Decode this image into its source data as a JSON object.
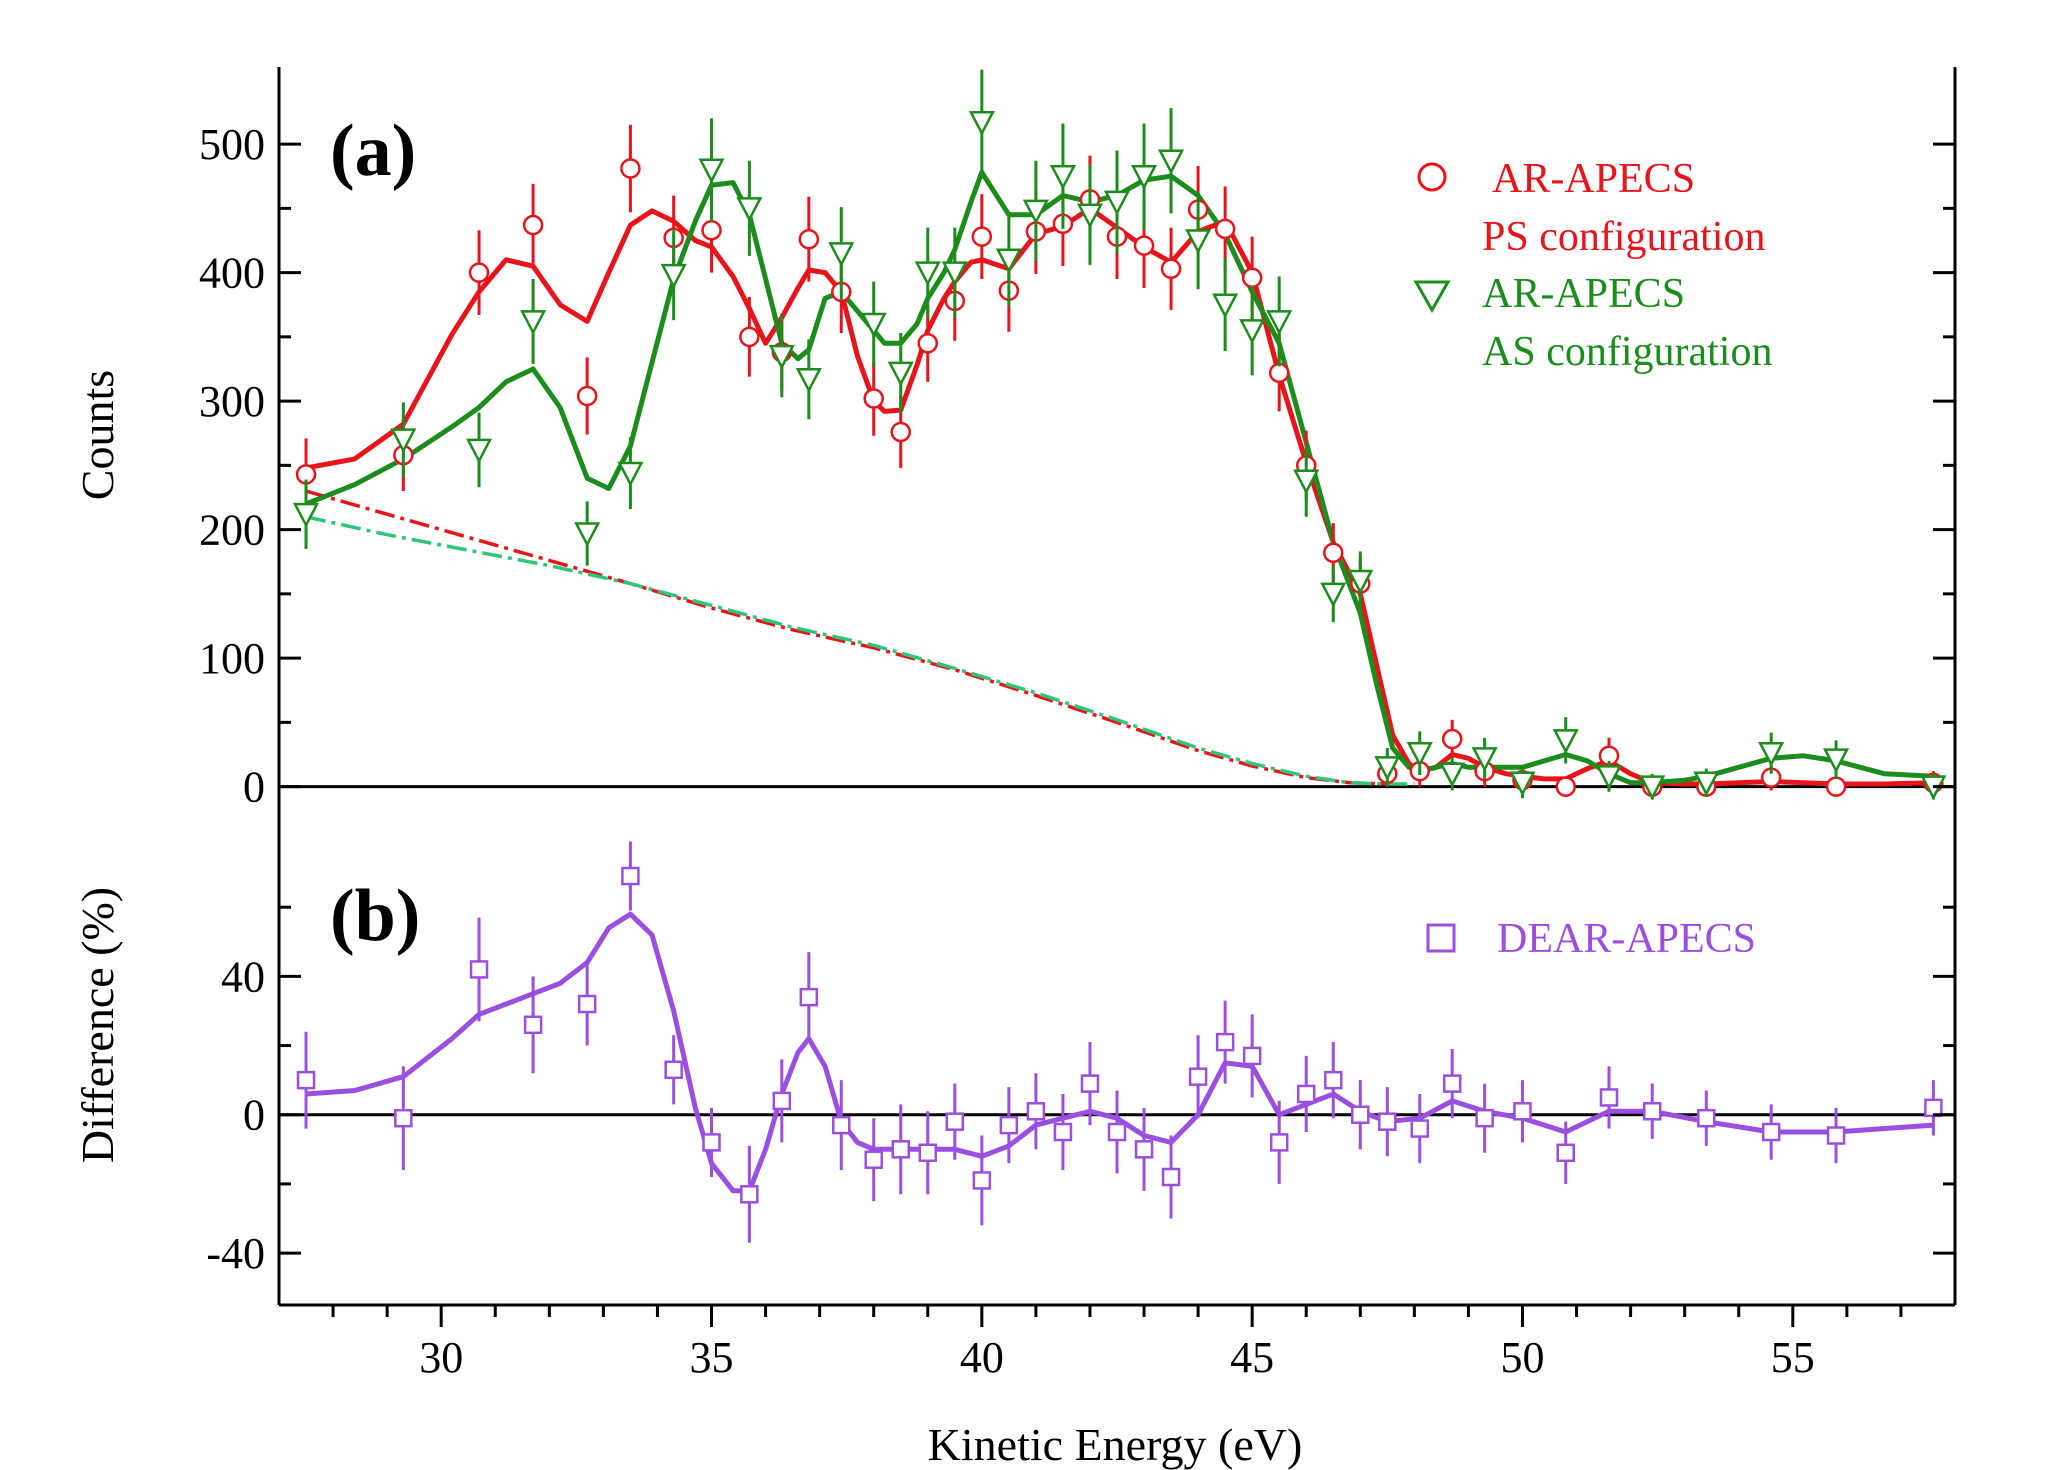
{
  "chart_data": [
    {
      "panel": "(a)",
      "type": "scatter",
      "xlabel": "Kinetic Energy (eV)",
      "ylabel": "Counts",
      "xlim": [
        27,
        58
      ],
      "ylim": [
        -40,
        560
      ],
      "x_ticks": [
        30,
        35,
        40,
        45,
        50,
        55
      ],
      "y_ticks": [
        0,
        100,
        200,
        300,
        400,
        500
      ],
      "legend_position": "top-right",
      "grid": false,
      "series": [
        {
          "name": "AR-APECS",
          "name_line2": "PS configuration",
          "color": "#e8141c",
          "marker": "circle",
          "x": [
            27.5,
            29.3,
            30.7,
            31.7,
            32.7,
            33.5,
            34.3,
            35.0,
            35.7,
            36.3,
            36.8,
            37.4,
            38.0,
            38.5,
            39.0,
            39.5,
            40.0,
            40.5,
            41.0,
            41.5,
            42.0,
            42.5,
            43.0,
            43.5,
            44.0,
            44.5,
            45.0,
            45.5,
            46.0,
            46.5,
            47.0,
            47.5,
            48.1,
            48.7,
            49.3,
            50.0,
            50.8,
            51.6,
            52.4,
            53.4,
            54.6,
            55.8,
            57.6
          ],
          "y": [
            243,
            258,
            400,
            437,
            304,
            481,
            427,
            433,
            350,
            338,
            426,
            385,
            302,
            276,
            345,
            378,
            428,
            386,
            432,
            438,
            457,
            428,
            421,
            403,
            449,
            434,
            396,
            322,
            250,
            182,
            158,
            10,
            12,
            37,
            12,
            5,
            0,
            24,
            0,
            0,
            7,
            0,
            3
          ],
          "err": [
            28,
            28,
            33,
            32,
            30,
            34,
            33,
            33,
            31,
            30,
            33,
            32,
            29,
            28,
            30,
            31,
            33,
            32,
            33,
            33,
            34,
            33,
            33,
            32,
            34,
            33,
            32,
            30,
            27,
            23,
            21,
            10,
            12,
            15,
            12,
            10,
            8,
            14,
            8,
            8,
            10,
            8,
            9
          ],
          "fit_x": [
            27.5,
            28.4,
            29.3,
            30.2,
            30.7,
            31.2,
            31.7,
            32.2,
            32.7,
            33.1,
            33.5,
            33.9,
            34.3,
            34.7,
            35.0,
            35.4,
            35.7,
            36.0,
            36.3,
            36.6,
            36.8,
            37.1,
            37.4,
            37.7,
            38.0,
            38.2,
            38.5,
            38.8,
            39.0,
            39.3,
            39.5,
            39.8,
            40.0,
            40.5,
            41.0,
            41.5,
            42.0,
            42.5,
            43.0,
            43.5,
            44.0,
            44.5,
            45.0,
            45.5,
            46.0,
            46.5,
            47.0,
            47.3,
            47.6,
            47.9,
            48.1,
            48.4,
            48.7,
            49.0,
            49.3,
            49.7,
            50.0,
            50.4,
            50.8,
            51.2,
            51.6,
            52.0,
            52.4,
            53.0,
            53.4,
            54.0,
            54.6,
            55.2,
            55.8,
            56.7,
            57.6
          ],
          "fit_y": [
            248,
            255,
            282,
            352,
            385,
            410,
            405,
            375,
            362,
            400,
            437,
            448,
            440,
            425,
            420,
            397,
            372,
            345,
            365,
            388,
            402,
            400,
            385,
            335,
            300,
            292,
            293,
            328,
            355,
            380,
            393,
            408,
            410,
            403,
            430,
            436,
            450,
            435,
            420,
            408,
            432,
            440,
            400,
            320,
            252,
            190,
            150,
            95,
            40,
            18,
            12,
            15,
            25,
            22,
            15,
            10,
            8,
            6,
            6,
            14,
            20,
            10,
            3,
            2,
            2,
            3,
            4,
            3,
            2,
            2,
            3
          ],
          "background_x": [
            27.5,
            29.0,
            30.5,
            32.0,
            33.5,
            35.0,
            36.5,
            38.0,
            39.5,
            41.0,
            42.5,
            44.0,
            45.0,
            46.0,
            46.8,
            47.5
          ],
          "background_y": [
            230,
            212,
            194,
            176,
            158,
            139,
            122,
            108,
            91,
            71,
            50,
            28,
            16,
            7,
            3,
            2
          ]
        },
        {
          "name": "AR-APECS",
          "name_line2": "AS configuration",
          "color": "#1c8c1c",
          "marker": "triangle-down",
          "x": [
            27.5,
            29.3,
            30.7,
            31.7,
            32.7,
            33.5,
            34.3,
            35.0,
            35.7,
            36.3,
            36.8,
            37.4,
            38.0,
            38.5,
            39.0,
            39.5,
            40.0,
            40.5,
            41.0,
            41.5,
            42.0,
            42.5,
            43.0,
            43.5,
            44.0,
            44.5,
            45.0,
            45.5,
            46.0,
            46.5,
            47.0,
            47.5,
            48.1,
            48.7,
            49.3,
            50.0,
            50.8,
            51.6,
            52.4,
            53.4,
            54.6,
            55.8,
            57.6
          ],
          "y": [
            212,
            270,
            262,
            362,
            197,
            244,
            398,
            480,
            450,
            335,
            317,
            415,
            360,
            322,
            400,
            400,
            517,
            410,
            448,
            475,
            445,
            455,
            475,
            487,
            425,
            375,
            355,
            362,
            238,
            150,
            160,
            15,
            26,
            10,
            22,
            3,
            36,
            8,
            0,
            3,
            26,
            21,
            0
          ],
          "err": [
            27,
            29,
            29,
            33,
            25,
            28,
            35,
            40,
            37,
            32,
            31,
            36,
            33,
            31,
            35,
            35,
            41,
            36,
            39,
            41,
            39,
            40,
            41,
            41,
            38,
            36,
            35,
            35,
            28,
            22,
            23,
            15,
            17,
            13,
            16,
            12,
            18,
            12,
            10,
            11,
            16,
            15,
            10
          ],
          "fit_x": [
            27.5,
            28.4,
            29.3,
            30.2,
            30.7,
            31.2,
            31.7,
            32.2,
            32.7,
            33.1,
            33.5,
            33.9,
            34.3,
            34.7,
            35.0,
            35.4,
            35.7,
            36.0,
            36.3,
            36.6,
            36.8,
            37.1,
            37.4,
            37.7,
            38.0,
            38.2,
            38.5,
            38.8,
            39.0,
            39.3,
            39.5,
            39.8,
            40.0,
            40.5,
            41.0,
            41.5,
            42.0,
            42.5,
            43.0,
            43.5,
            44.0,
            44.5,
            45.0,
            45.5,
            46.0,
            46.5,
            47.0,
            47.3,
            47.6,
            47.9,
            48.1,
            48.4,
            48.7,
            49.0,
            49.3,
            49.7,
            50.0,
            50.4,
            50.8,
            51.2,
            51.6,
            52.0,
            52.4,
            53.0,
            53.4,
            54.0,
            54.6,
            55.2,
            55.8,
            56.7,
            57.6
          ],
          "fit_y": [
            220,
            235,
            255,
            280,
            295,
            315,
            325,
            295,
            240,
            232,
            265,
            330,
            395,
            440,
            468,
            470,
            445,
            395,
            345,
            333,
            340,
            380,
            385,
            370,
            355,
            345,
            345,
            360,
            380,
            400,
            418,
            455,
            478,
            445,
            445,
            460,
            455,
            460,
            472,
            475,
            460,
            430,
            385,
            345,
            268,
            190,
            135,
            80,
            30,
            15,
            12,
            15,
            18,
            15,
            15,
            15,
            15,
            20,
            25,
            20,
            10,
            3,
            3,
            5,
            8,
            15,
            22,
            24,
            20,
            10,
            8
          ],
          "background_x": [
            27.5,
            29.0,
            30.5,
            32.0,
            33.5,
            35.0,
            36.5,
            38.0,
            39.5,
            41.0,
            42.5,
            44.0,
            45.0,
            46.0,
            46.8,
            47.5,
            48.0
          ],
          "background_y": [
            210,
            196,
            184,
            172,
            158,
            141,
            124,
            110,
            92,
            73,
            52,
            30,
            18,
            8,
            3,
            2,
            2
          ]
        }
      ]
    },
    {
      "panel": "(b)",
      "type": "scatter",
      "xlabel": "Kinetic Energy (eV)",
      "ylabel": "Difference (%)",
      "xlim": [
        27,
        58
      ],
      "ylim": [
        -55,
        80
      ],
      "x_ticks": [
        30,
        35,
        40,
        45,
        50,
        55
      ],
      "y_ticks": [
        -40,
        0,
        40
      ],
      "legend_position": "top-right",
      "grid": false,
      "series": [
        {
          "name": "DEAR-APECS",
          "color": "#9a4fe0",
          "marker": "square",
          "x": [
            27.5,
            29.3,
            30.7,
            31.7,
            32.7,
            33.5,
            34.3,
            35.0,
            35.7,
            36.3,
            36.8,
            37.4,
            38.0,
            38.5,
            39.0,
            39.5,
            40.0,
            40.5,
            41.0,
            41.5,
            42.0,
            42.5,
            43.0,
            43.5,
            44.0,
            44.5,
            45.0,
            45.5,
            46.0,
            46.5,
            47.0,
            47.5,
            48.1,
            48.7,
            49.3,
            50.0,
            50.8,
            51.6,
            52.4,
            53.4,
            54.6,
            55.8,
            57.6
          ],
          "y": [
            10,
            -1,
            42,
            26,
            32,
            69,
            13,
            -8,
            -23,
            4,
            34,
            -3,
            -13,
            -10,
            -11,
            -2,
            -19,
            -3,
            1,
            -5,
            9,
            -5,
            -10,
            -18,
            11,
            21,
            17,
            -8,
            6,
            10,
            0,
            -2,
            -4,
            9,
            -1,
            1,
            -11,
            5,
            1,
            -1,
            -5,
            -6,
            2
          ],
          "err": [
            14,
            15,
            15,
            14,
            12,
            10,
            10,
            10,
            14,
            12,
            13,
            13,
            12,
            13,
            12,
            11,
            13,
            11,
            11,
            11,
            12,
            12,
            12,
            12,
            12,
            12,
            12,
            12,
            11,
            11,
            10,
            10,
            10,
            10,
            10,
            9,
            9,
            9,
            8,
            8,
            8,
            8,
            8
          ],
          "fit_x": [
            27.5,
            28.4,
            29.3,
            30.2,
            30.7,
            31.2,
            31.7,
            32.2,
            32.7,
            33.1,
            33.5,
            33.9,
            34.3,
            34.7,
            35.0,
            35.4,
            35.7,
            36.0,
            36.3,
            36.6,
            36.8,
            37.1,
            37.4,
            37.7,
            38.0,
            38.5,
            39.0,
            39.5,
            40.0,
            40.5,
            41.0,
            41.5,
            42.0,
            42.5,
            43.0,
            43.5,
            44.0,
            44.5,
            45.0,
            45.5,
            46.0,
            46.5,
            47.0,
            47.5,
            48.1,
            48.7,
            49.3,
            50.0,
            50.8,
            51.6,
            52.4,
            53.4,
            54.6,
            55.8,
            57.6
          ],
          "fit_y": [
            6,
            7,
            11,
            22,
            29,
            32,
            35,
            38,
            44,
            54,
            58,
            52,
            30,
            2,
            -14,
            -22,
            -22,
            -10,
            6,
            18,
            22,
            14,
            -2,
            -8,
            -10,
            -10,
            -10,
            -10,
            -12,
            -9,
            -3,
            -1,
            1,
            -1,
            -6,
            -8,
            0,
            15,
            14,
            0,
            3,
            6,
            1,
            -2,
            -1,
            4,
            1,
            -1,
            -5,
            1,
            1,
            -2,
            -5,
            -5,
            -3
          ]
        }
      ]
    }
  ]
}
